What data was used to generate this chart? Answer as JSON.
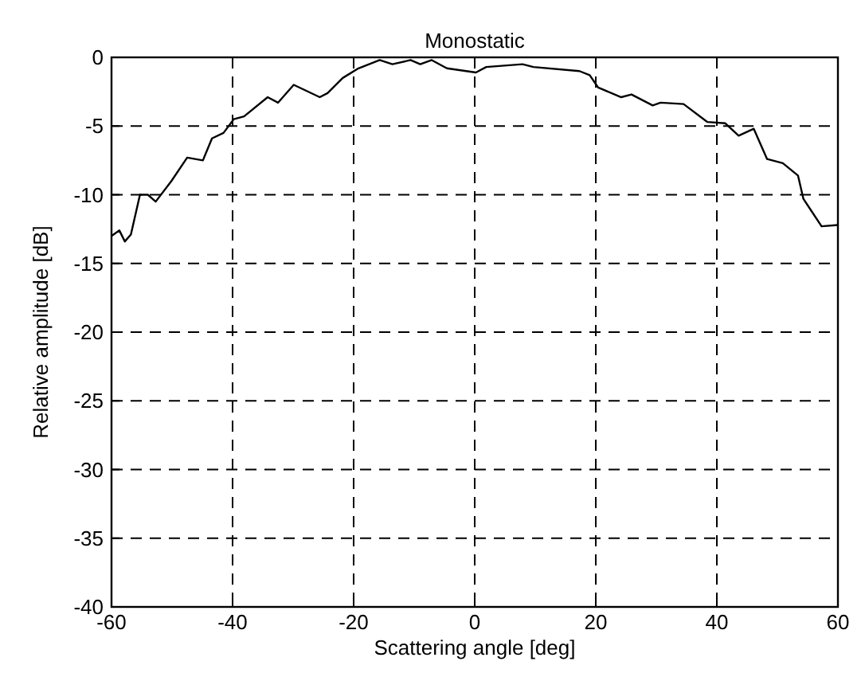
{
  "chart_data": {
    "type": "line",
    "title": "Monostatic",
    "xlabel": "Scattering angle [deg]",
    "ylabel": "Relative amplitude [dB]",
    "xlim": [
      -60,
      60
    ],
    "xticks": [
      -60,
      -40,
      -20,
      0,
      20,
      40,
      60
    ],
    "ylim": [
      -40,
      0
    ],
    "yticks": [
      -40,
      -35,
      -30,
      -25,
      -20,
      -15,
      -10,
      -5,
      0
    ],
    "grid": true,
    "series": [
      {
        "color": "#000000",
        "x": [
          -60,
          -58.7,
          -57.8,
          -56.8,
          -55.3,
          -54,
          -52.7,
          -50.1,
          -47.5,
          -44.9,
          -43.4,
          -41.5,
          -39.8,
          -38.1,
          -34.2,
          -32.5,
          -29.9,
          -25.6,
          -24.3,
          -21.8,
          -19.2,
          -15.7,
          -13.6,
          -10.6,
          -9,
          -7.1,
          -4.6,
          0.2,
          1.9,
          7.9,
          9.7,
          17.3,
          19,
          20.4,
          24.2,
          25.9,
          29.4,
          30.7,
          34.5,
          38.4,
          41.4,
          43.6,
          46.1,
          48.3,
          50.9,
          53.4,
          54.3,
          57.3,
          60
        ],
        "values": [
          -13,
          -12.6,
          -13.4,
          -12.9,
          -10,
          -10,
          -10.5,
          -9,
          -7.3,
          -7.5,
          -5.9,
          -5.5,
          -4.5,
          -4.3,
          -2.9,
          -3.3,
          -2,
          -2.9,
          -2.6,
          -1.5,
          -0.8,
          -0.2,
          -0.5,
          -0.2,
          -0.5,
          -0.2,
          -0.8,
          -1.1,
          -0.7,
          -0.5,
          -0.7,
          -1,
          -1.3,
          -2.2,
          -2.9,
          -2.7,
          -3.5,
          -3.3,
          -3.4,
          -4.7,
          -4.8,
          -5.7,
          -5.2,
          -7.4,
          -7.7,
          -8.6,
          -10.3,
          -12.3,
          -12.2
        ]
      }
    ]
  }
}
